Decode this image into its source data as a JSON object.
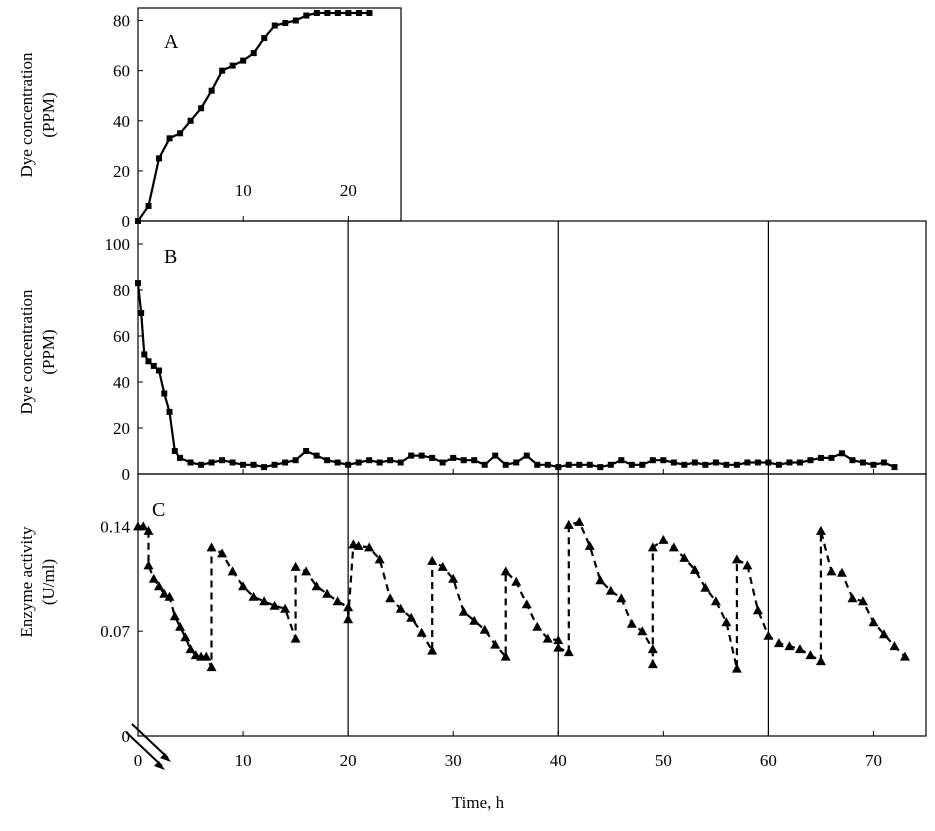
{
  "panels": {
    "A": {
      "label": "A",
      "ylabel_line1": "Dye concentration",
      "ylabel_line2": "(PPM)"
    },
    "B": {
      "label": "B",
      "ylabel_line1": "Dye concentration",
      "ylabel_line2": "(PPM)"
    },
    "C": {
      "label": "C",
      "ylabel_line1": "Enzyme  activity",
      "ylabel_line2": "(U/ml)"
    }
  },
  "xlabel": "Time,  h",
  "chart_data": [
    {
      "type": "line",
      "panel": "A",
      "xlim": [
        0,
        25
      ],
      "ylim": [
        0,
        85
      ],
      "x_ticks": [
        10,
        20
      ],
      "y_ticks": [
        0,
        20,
        40,
        60,
        80
      ],
      "series": [
        {
          "marker": "square",
          "line": "solid",
          "points": [
            [
              0,
              0
            ],
            [
              1,
              6
            ],
            [
              2,
              25
            ],
            [
              3,
              33
            ],
            [
              4,
              35
            ],
            [
              5,
              40
            ],
            [
              6,
              45
            ],
            [
              7,
              52
            ],
            [
              8,
              60
            ],
            [
              9,
              62
            ],
            [
              10,
              64
            ],
            [
              11,
              67
            ],
            [
              12,
              73
            ],
            [
              13,
              78
            ],
            [
              14,
              79
            ],
            [
              15,
              80
            ],
            [
              16,
              82
            ],
            [
              17,
              83
            ],
            [
              18,
              83
            ],
            [
              19,
              83
            ],
            [
              20,
              83
            ],
            [
              21,
              83
            ],
            [
              22,
              83
            ]
          ]
        }
      ]
    },
    {
      "type": "line",
      "panel": "B",
      "xlim": [
        0,
        75
      ],
      "ylim": [
        0,
        110
      ],
      "x_ticks": [
        0,
        10,
        20,
        30,
        40,
        50,
        60,
        70
      ],
      "y_ticks": [
        0,
        20,
        40,
        60,
        80,
        100
      ],
      "vlines": [
        20,
        40,
        60
      ],
      "series": [
        {
          "marker": "square",
          "line": "solid",
          "points": [
            [
              0,
              83
            ],
            [
              0.3,
              70
            ],
            [
              0.6,
              52
            ],
            [
              1,
              49
            ],
            [
              1.5,
              47
            ],
            [
              2,
              45
            ],
            [
              2.5,
              35
            ],
            [
              3,
              27
            ],
            [
              3.5,
              10
            ],
            [
              4,
              7
            ],
            [
              5,
              5
            ],
            [
              6,
              4
            ],
            [
              7,
              5
            ],
            [
              8,
              6
            ],
            [
              9,
              5
            ],
            [
              10,
              4
            ],
            [
              11,
              4
            ],
            [
              12,
              3
            ],
            [
              13,
              4
            ],
            [
              14,
              5
            ],
            [
              15,
              6
            ],
            [
              16,
              10
            ],
            [
              17,
              8
            ],
            [
              18,
              6
            ],
            [
              19,
              5
            ],
            [
              20,
              4
            ],
            [
              21,
              5
            ],
            [
              22,
              6
            ],
            [
              23,
              5
            ],
            [
              24,
              6
            ],
            [
              25,
              5
            ],
            [
              26,
              8
            ],
            [
              27,
              8
            ],
            [
              28,
              7
            ],
            [
              29,
              5
            ],
            [
              30,
              7
            ],
            [
              31,
              6
            ],
            [
              32,
              6
            ],
            [
              33,
              4
            ],
            [
              34,
              8
            ],
            [
              35,
              4
            ],
            [
              36,
              5
            ],
            [
              37,
              8
            ],
            [
              38,
              4
            ],
            [
              39,
              4
            ],
            [
              40,
              3
            ],
            [
              41,
              4
            ],
            [
              42,
              4
            ],
            [
              43,
              4
            ],
            [
              44,
              3
            ],
            [
              45,
              4
            ],
            [
              46,
              6
            ],
            [
              47,
              4
            ],
            [
              48,
              4
            ],
            [
              49,
              6
            ],
            [
              50,
              6
            ],
            [
              51,
              5
            ],
            [
              52,
              4
            ],
            [
              53,
              5
            ],
            [
              54,
              4
            ],
            [
              55,
              5
            ],
            [
              56,
              4
            ],
            [
              57,
              4
            ],
            [
              58,
              5
            ],
            [
              59,
              5
            ],
            [
              60,
              5
            ],
            [
              61,
              4
            ],
            [
              62,
              5
            ],
            [
              63,
              5
            ],
            [
              64,
              6
            ],
            [
              65,
              7
            ],
            [
              66,
              7
            ],
            [
              67,
              9
            ],
            [
              68,
              6
            ],
            [
              69,
              5
            ],
            [
              70,
              4
            ],
            [
              71,
              5
            ],
            [
              72,
              3
            ]
          ]
        }
      ]
    },
    {
      "type": "line",
      "panel": "C",
      "xlim": [
        0,
        75
      ],
      "ylim": [
        0,
        0.175
      ],
      "x_ticks": [
        0,
        10,
        20,
        30,
        40,
        50,
        60,
        70
      ],
      "y_ticks": [
        0,
        0.07,
        0.14
      ],
      "y_tick_labels": [
        "0",
        "0.07",
        "0.14"
      ],
      "vlines": [
        20,
        40,
        60
      ],
      "series": [
        {
          "marker": "triangle",
          "line": "dashed",
          "points": [
            [
              0,
              0.14
            ],
            [
              0.5,
              0.14
            ],
            [
              1,
              0.137
            ],
            [
              1,
              0.114
            ],
            [
              1.5,
              0.105
            ],
            [
              2,
              0.1
            ],
            [
              2.5,
              0.095
            ],
            [
              3,
              0.093
            ],
            [
              3.5,
              0.08
            ],
            [
              4,
              0.073
            ],
            [
              4.5,
              0.066
            ],
            [
              5,
              0.058
            ],
            [
              5.5,
              0.054
            ],
            [
              6,
              0.053
            ],
            [
              6.5,
              0.053
            ],
            [
              7,
              0.046
            ],
            [
              7,
              0.126
            ],
            [
              8,
              0.122
            ],
            [
              9,
              0.11
            ],
            [
              10,
              0.1
            ],
            [
              11,
              0.093
            ],
            [
              12,
              0.09
            ],
            [
              13,
              0.087
            ],
            [
              14,
              0.085
            ],
            [
              15,
              0.065
            ],
            [
              15,
              0.113
            ],
            [
              16,
              0.11
            ],
            [
              17,
              0.1
            ],
            [
              18,
              0.095
            ],
            [
              19,
              0.09
            ],
            [
              20,
              0.086
            ],
            [
              20,
              0.078
            ],
            [
              20.5,
              0.128
            ],
            [
              21,
              0.127
            ],
            [
              22,
              0.126
            ],
            [
              23,
              0.118
            ],
            [
              24,
              0.092
            ],
            [
              25,
              0.085
            ],
            [
              26,
              0.079
            ],
            [
              27,
              0.069
            ],
            [
              28,
              0.057
            ],
            [
              28,
              0.117
            ],
            [
              29,
              0.113
            ],
            [
              30,
              0.105
            ],
            [
              31,
              0.083
            ],
            [
              32,
              0.077
            ],
            [
              33,
              0.071
            ],
            [
              34,
              0.061
            ],
            [
              35,
              0.053
            ],
            [
              35,
              0.11
            ],
            [
              36,
              0.103
            ],
            [
              37,
              0.088
            ],
            [
              38,
              0.073
            ],
            [
              39,
              0.065
            ],
            [
              40,
              0.064
            ],
            [
              40,
              0.059
            ],
            [
              41,
              0.056
            ],
            [
              41,
              0.141
            ],
            [
              42,
              0.143
            ],
            [
              43,
              0.127
            ],
            [
              44,
              0.104
            ],
            [
              45,
              0.097
            ],
            [
              46,
              0.092
            ],
            [
              47,
              0.075
            ],
            [
              48,
              0.07
            ],
            [
              49,
              0.058
            ],
            [
              49,
              0.048
            ],
            [
              49,
              0.126
            ],
            [
              50,
              0.131
            ],
            [
              51,
              0.126
            ],
            [
              52,
              0.119
            ],
            [
              53,
              0.111
            ],
            [
              54,
              0.099
            ],
            [
              55,
              0.09
            ],
            [
              56,
              0.076
            ],
            [
              57,
              0.045
            ],
            [
              57,
              0.118
            ],
            [
              58,
              0.114
            ],
            [
              59,
              0.084
            ],
            [
              60,
              0.067
            ],
            [
              61,
              0.062
            ],
            [
              62,
              0.06
            ],
            [
              63,
              0.058
            ],
            [
              64,
              0.054
            ],
            [
              65,
              0.05
            ],
            [
              65,
              0.137
            ],
            [
              66,
              0.11
            ],
            [
              67,
              0.109
            ],
            [
              68,
              0.092
            ],
            [
              69,
              0.09
            ],
            [
              70,
              0.076
            ],
            [
              71,
              0.068
            ],
            [
              72,
              0.06
            ],
            [
              73,
              0.053
            ]
          ]
        }
      ]
    }
  ]
}
